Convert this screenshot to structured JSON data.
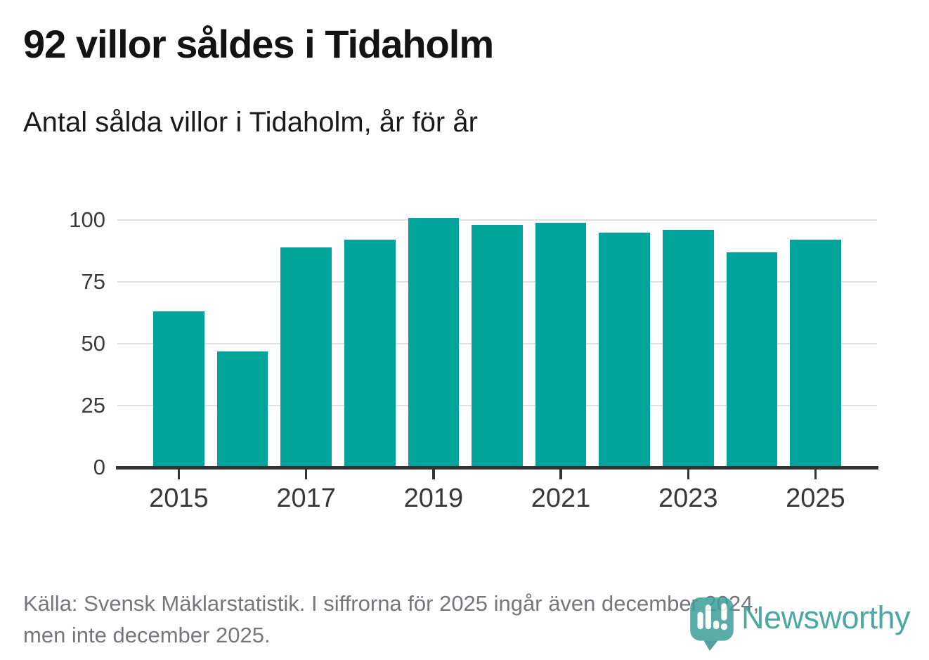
{
  "header": {
    "title": "92 villor såldes i Tidaholm",
    "subtitle": "Antal sålda villor i Tidaholm, år för år"
  },
  "footer": {
    "source_line1": "Källa: Svensk Mäklarstatistik. I siffrorna för 2025 ingår även december 2024,",
    "source_line2": "men inte december 2025.",
    "brand": "Newsworthy",
    "brand_icon": "newsworthy-speech-bubble-bar-chart-icon"
  },
  "colors": {
    "bar": "#00a49b",
    "grid": "#e0e0e0",
    "axis": "#333333",
    "title_text": "#131313",
    "axis_text": "#3a3a3a",
    "footer_text": "#76767d",
    "logo_teal": "#3d9e99",
    "logo_text_teal": "#2e9a94"
  },
  "chart_data": {
    "type": "bar",
    "title": "92 villor såldes i Tidaholm",
    "subtitle": "Antal sålda villor i Tidaholm, år för år",
    "categories": [
      2015,
      2016,
      2017,
      2018,
      2019,
      2020,
      2021,
      2022,
      2023,
      2024,
      2025
    ],
    "values": [
      63,
      47,
      89,
      92,
      101,
      98,
      99,
      95,
      96,
      87,
      92
    ],
    "xlabel": "",
    "ylabel": "",
    "ylim": [
      0,
      106.6
    ],
    "yticks": [
      0,
      25,
      50,
      75,
      100
    ],
    "xticks": [
      2015,
      2017,
      2019,
      2021,
      2023,
      2025
    ],
    "grid": true,
    "legend": false,
    "bar_color": "#00a49b"
  }
}
